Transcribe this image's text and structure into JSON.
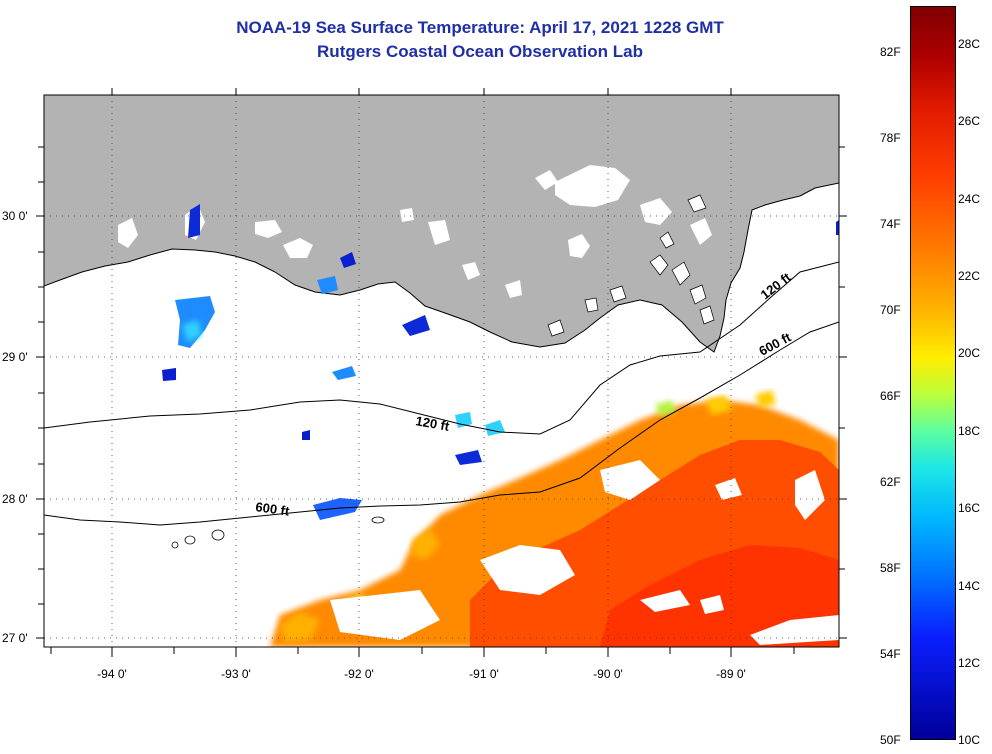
{
  "title": {
    "line1": "NOAA-19 Sea Surface Temperature:  April 17, 2021 1228 GMT",
    "line2": "Rutgers Coastal Ocean Observation Lab"
  },
  "map": {
    "longitude_labels": [
      "-94 0'",
      "-93 0'",
      "-92 0'",
      "-91 0'",
      "-90 0'",
      "-89 0'"
    ],
    "latitude_labels": [
      "30 0'",
      "29 0'",
      "28 0'",
      "27 0'"
    ],
    "contour_labels": [
      "120 ft",
      "600 ft",
      "120 ft",
      "600 ft"
    ],
    "land_color": "#b3b3b3",
    "cloud_color": "#ffffff",
    "warm_water_color": "#ff4a00"
  },
  "colorbar": {
    "fahrenheit_labels": [
      "82F",
      "78F",
      "74F",
      "70F",
      "66F",
      "62F",
      "58F",
      "54F",
      "50F"
    ],
    "celsius_labels": [
      "28C",
      "26C",
      "24C",
      "22C",
      "20C",
      "18C",
      "16C",
      "14C",
      "12C",
      "10C"
    ]
  }
}
